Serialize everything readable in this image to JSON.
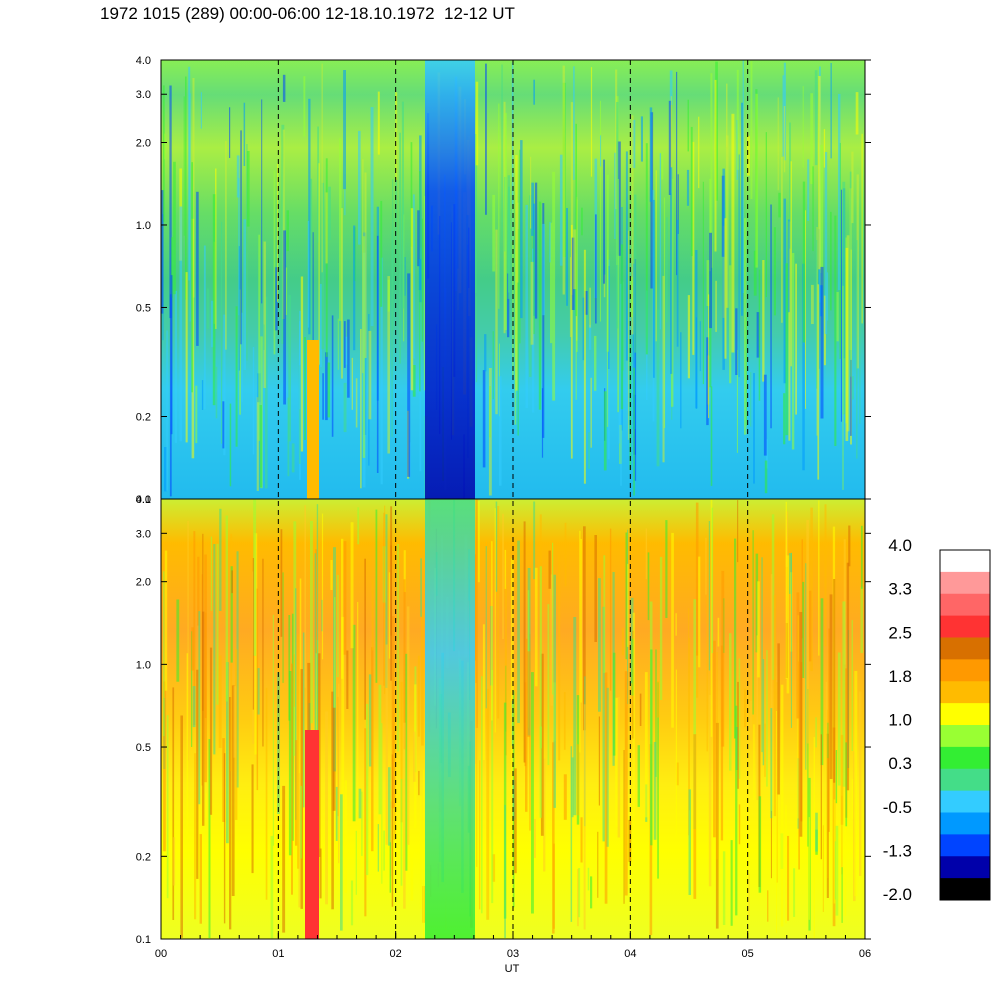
{
  "title": "1972 1015 (289) 00:00-06:00 12-18.10.1972  12-12 UT",
  "chart_data": {
    "type": "heatmap",
    "title": "1972 1015 (289) 00:00-06:00 12-18.10.1972  12-12 UT",
    "xlabel": "UT",
    "ylabel": "",
    "x_ticks": [
      "00",
      "01",
      "02",
      "03",
      "04",
      "05",
      "06"
    ],
    "xlim": [
      0,
      6
    ],
    "y_scale": "log",
    "ylim": [
      0.1,
      4.0
    ],
    "y_ticks": [
      "0.1",
      "0.2",
      "0.5",
      "1.0",
      "2.0",
      "3.0",
      "4.0"
    ],
    "y_tick_values": [
      0.1,
      0.2,
      0.5,
      1.0,
      2.0,
      3.0,
      4.0
    ],
    "grid": "dashed vertical lines at each hour",
    "panels": [
      {
        "name": "upper",
        "dominant_levels": "-0.5 to 0.7",
        "low_feature_ut": [
          2.3,
          2.7
        ]
      },
      {
        "name": "lower",
        "dominant_levels": "0.7 to 2.0",
        "low_feature_ut": [
          2.3,
          2.7
        ]
      }
    ],
    "colorbar": {
      "labels": [
        "4.0",
        "3.3",
        "2.5",
        "1.8",
        "1.0",
        "0.3",
        "-0.5",
        "-1.3",
        "-2.0"
      ],
      "colors": [
        "#ffffff",
        "#ff9999",
        "#ff6666",
        "#ff3333",
        "#d87000",
        "#ff9900",
        "#ffbb00",
        "#ffff00",
        "#99ff33",
        "#33ee33",
        "#44dd88",
        "#33ccff",
        "#0099ff",
        "#0044ff",
        "#0000aa",
        "#000000"
      ]
    }
  }
}
